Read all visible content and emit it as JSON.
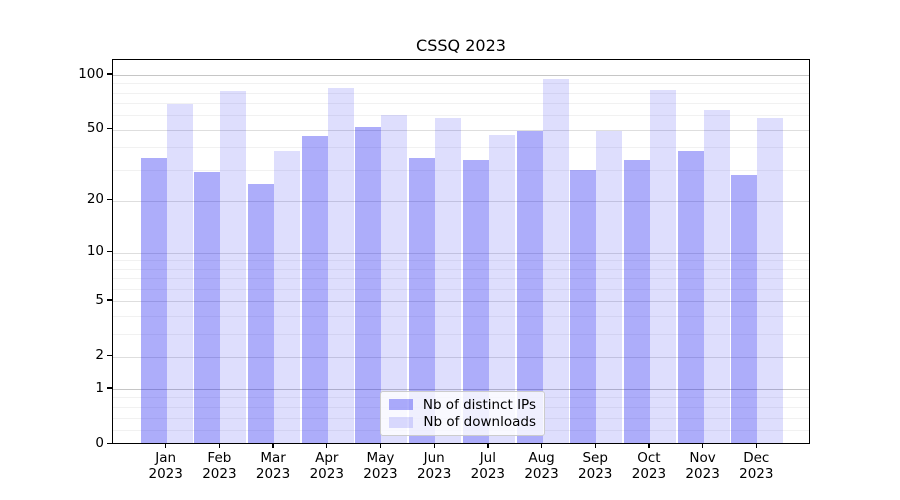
{
  "title": "CSSQ 2023",
  "chart_data": {
    "type": "bar",
    "title": "CSSQ 2023",
    "yscale": "log1p",
    "grid": true,
    "ylim": [
      0,
      121
    ],
    "yticks": [
      0,
      1,
      2,
      5,
      10,
      20,
      50,
      100
    ],
    "minor_gridlines": [
      0.2,
      0.4,
      0.6,
      0.8,
      3,
      4,
      6,
      7,
      8,
      9,
      30,
      40,
      60,
      70,
      80,
      90
    ],
    "categories": [
      "Jan",
      "Feb",
      "Mar",
      "Apr",
      "May",
      "Jun",
      "Jul",
      "Aug",
      "Sep",
      "Oct",
      "Nov",
      "Dec"
    ],
    "x_tick_year": "2023",
    "series": [
      {
        "name": "Nb of distinct IPs",
        "color": "#a9a9f7",
        "fill": "rgba(20,20,240,0.35)",
        "values": [
          35,
          29,
          25,
          46,
          52,
          35,
          34,
          49,
          30,
          34,
          38,
          28
        ]
      },
      {
        "name": "Nb of downloads",
        "color": "#dcdcf9",
        "fill": "rgba(20,20,240,0.14)",
        "values": [
          69,
          82,
          38,
          85,
          60,
          58,
          47,
          95,
          49,
          83,
          64,
          58
        ]
      }
    ],
    "legend_position": "lower center",
    "colors": {
      "major_grid": "#dedede",
      "emphasized_grid": "#c6c6c6",
      "minor_grid": "#f1f1f1",
      "spine": "#000000",
      "background": "#ffffff"
    }
  }
}
